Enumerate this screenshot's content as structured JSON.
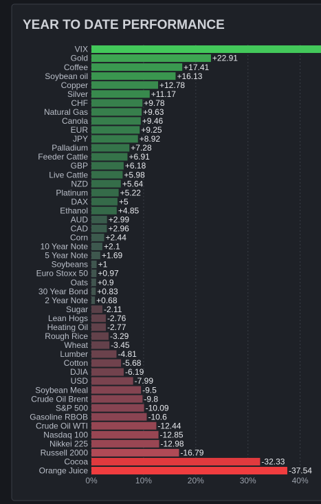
{
  "chart_data": {
    "type": "bar",
    "title": "YEAR TO DATE PERFORMANCE",
    "categories": [
      "VIX",
      "Gold",
      "Coffee",
      "Soybean oil",
      "Copper",
      "Silver",
      "CHF",
      "Natural Gas",
      "Canola",
      "EUR",
      "JPY",
      "Palladium",
      "Feeder Cattle",
      "GBP",
      "Live Cattle",
      "NZD",
      "Platinum",
      "DAX",
      "Ethanol",
      "AUD",
      "CAD",
      "Corn",
      "10 Year Note",
      "5 Year Note",
      "Soybeans",
      "Euro Stoxx 50",
      "Oats",
      "30 Year Bond",
      "2 Year Note",
      "Sugar",
      "Lean Hogs",
      "Heating Oil",
      "Rough Rice",
      "Wheat",
      "Lumber",
      "Cotton",
      "DJIA",
      "USD",
      "Soybean Meal",
      "Crude Oil Brent",
      "S&P 500",
      "Gasoline RBOB",
      "Crude Oil WTI",
      "Nasdaq 100",
      "Nikkei 225",
      "Russell 2000",
      "Cocoa",
      "Orange Juice"
    ],
    "values": [
      44,
      22.91,
      17.41,
      16.13,
      12.78,
      11.17,
      9.78,
      9.63,
      9.46,
      9.25,
      8.92,
      7.28,
      6.91,
      6.18,
      5.98,
      5.64,
      5.22,
      5,
      4.85,
      2.99,
      2.96,
      2.44,
      2.1,
      1.69,
      1,
      0.97,
      0.9,
      0.83,
      0.68,
      -2.11,
      -2.76,
      -2.77,
      -3.29,
      -3.45,
      -4.81,
      -5.68,
      -6.19,
      -7.99,
      -9.5,
      -9.8,
      -10.09,
      -10.6,
      -12.44,
      -12.85,
      -12.98,
      -16.79,
      -32.33,
      -37.54
    ],
    "value_labels": [
      null,
      "+22.91",
      "+17.41",
      "+16.13",
      "+12.78",
      "+11.17",
      "+9.78",
      "+9.63",
      "+9.46",
      "+9.25",
      "+8.92",
      "+7.28",
      "+6.91",
      "+6.18",
      "+5.98",
      "+5.64",
      "+5.22",
      "+5",
      "+4.85",
      "+2.99",
      "+2.96",
      "+2.44",
      "+2.1",
      "+1.69",
      "+1",
      "+0.97",
      "+0.9",
      "+0.83",
      "+0.68",
      "-2.11",
      "-2.76",
      "-2.77",
      "-3.29",
      "-3.45",
      "-4.81",
      "-5.68",
      "-6.19",
      "-7.99",
      "-9.5",
      "-9.8",
      "-10.09",
      "-10.6",
      "-12.44",
      "-12.85",
      "-12.98",
      "-16.79",
      "-32.33",
      "-37.54"
    ],
    "colors": [
      "#43c85a",
      "#3ea552",
      "#3a9950",
      "#3a964f",
      "#398c4e",
      "#388a4d",
      "#37804c",
      "#377f4c",
      "#377e4c",
      "#367d4c",
      "#367b4b",
      "#35744a",
      "#357349",
      "#357049",
      "#356f49",
      "#356d49",
      "#356b49",
      "#356a49",
      "#356949",
      "#3a5c4c",
      "#3a5c4c",
      "#3c5a4d",
      "#3d584e",
      "#3e574e",
      "#40564f",
      "#41554f",
      "#41554f",
      "#42554f",
      "#42554f",
      "#5a4048",
      "#61414a",
      "#61414a",
      "#63414a",
      "#64414b",
      "#6b424c",
      "#70424d",
      "#72424d",
      "#7a434f",
      "#844451",
      "#854451",
      "#874452",
      "#8a4452",
      "#964653",
      "#984653",
      "#994653",
      "#b04a56",
      "#e03a3e",
      "#f03d3f"
    ],
    "xlim": [
      0,
      44
    ],
    "xticks": [
      {
        "value": 0,
        "label": "0%"
      },
      {
        "value": 10,
        "label": "10%"
      },
      {
        "value": 20,
        "label": "20%"
      },
      {
        "value": 30,
        "label": "30%"
      },
      {
        "value": 40,
        "label": "40%"
      }
    ],
    "grid": true
  }
}
